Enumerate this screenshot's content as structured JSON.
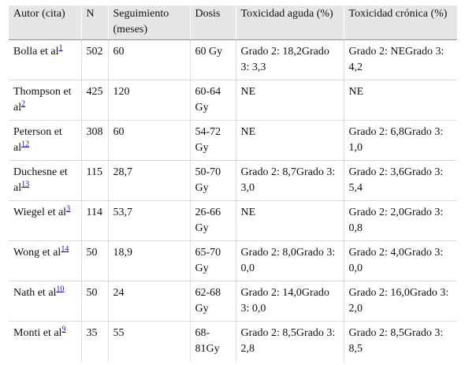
{
  "table": {
    "headers": [
      "Autor (cita)",
      "N",
      "Seguimiento (meses)",
      "Dosis",
      "Toxicidad aguda (%)",
      "Toxicidad crónica (%)"
    ],
    "rows": [
      {
        "author": "Bolla et al",
        "ref": "1",
        "n": "502",
        "followup": "60",
        "dose": "60 Gy",
        "acute": "Grado 2: 18,2Grado 3: 3,3",
        "chronic": "Grado 2: NEGrado 3: 4,2"
      },
      {
        "author": "Thompson et al",
        "ref": "2",
        "n": "425",
        "followup": "120",
        "dose": "60-64 Gy",
        "acute": "NE",
        "chronic": "NE"
      },
      {
        "author": "Peterson et al",
        "ref": "12",
        "n": "308",
        "followup": "60",
        "dose": "54-72 Gy",
        "acute": "NE",
        "chronic": "Grado 2: 6,8Grado 3: 1,0"
      },
      {
        "author": "Duchesne et al",
        "ref": "13",
        "n": "115",
        "followup": "28,7",
        "dose": "50-70 Gy",
        "acute": "Grado 2: 8,7Grado 3: 3,0",
        "chronic": "Grado 2: 3,6Grado 3: 5,4"
      },
      {
        "author": "Wiegel et al",
        "ref": "3",
        "n": "114",
        "followup": "53,7",
        "dose": "26-66 Gy",
        "acute": "NE",
        "chronic": "Grado 2: 2,0Grado 3: 0,8"
      },
      {
        "author": "Wong et al",
        "ref": "14",
        "n": "50",
        "followup": "18,9",
        "dose": "65-70 Gy",
        "acute": "Grado 2: 8,0Grado 3: 0,0",
        "chronic": "Grado 2: 4,0Grado 3: 0,0"
      },
      {
        "author": "Nath et al",
        "ref": "10",
        "n": "50",
        "followup": "24",
        "dose": "62-68 Gy",
        "acute": "Grado 2: 14,0Grado 3: 0,0",
        "chronic": "Grado 2: 16,0Grado 3: 2,0"
      },
      {
        "author": "Monti et al",
        "ref": "9",
        "n": "35",
        "followup": "55",
        "dose": "68-81Gy",
        "acute": "Grado 2: 8,5Grado 3: 2,8",
        "chronic": "Grado 2: 8,5Grado 3: 8,5"
      }
    ]
  }
}
